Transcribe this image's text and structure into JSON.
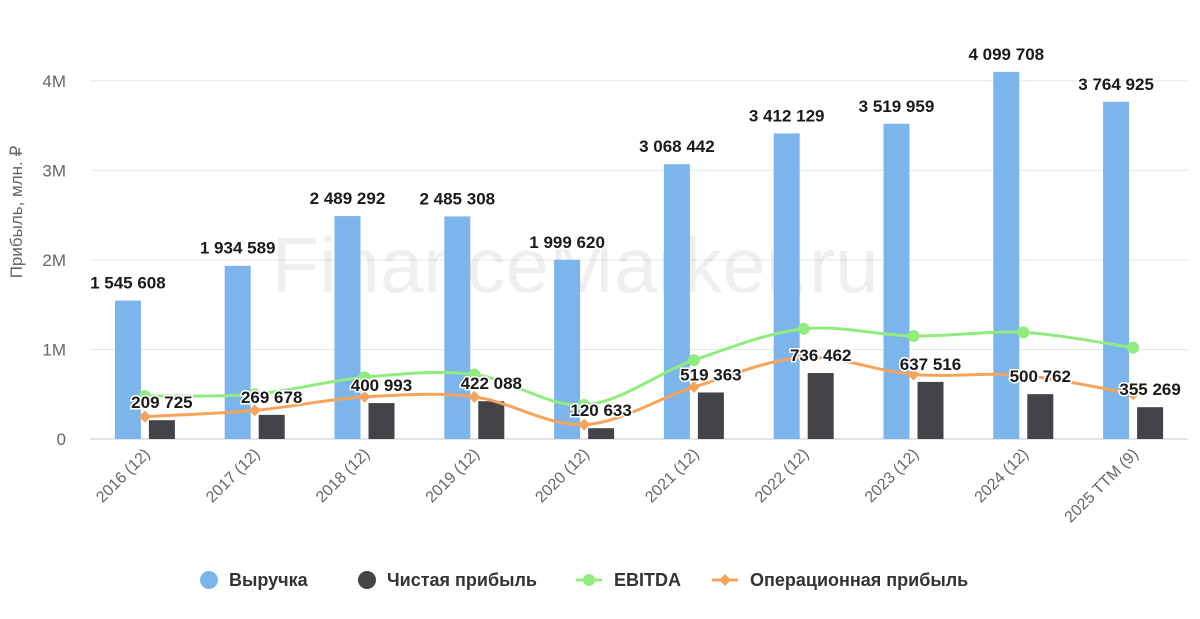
{
  "chart_data": {
    "type": "bar",
    "title": "",
    "ylabel": "Прибыль, млн. ₽",
    "xlabel": "",
    "ylim": [
      0,
      4500000
    ],
    "yticks": [
      {
        "value": 0,
        "label": "0"
      },
      {
        "value": 1000000,
        "label": "1M"
      },
      {
        "value": 2000000,
        "label": "2M"
      },
      {
        "value": 3000000,
        "label": "3M"
      },
      {
        "value": 4000000,
        "label": "4M"
      }
    ],
    "categories": [
      "2016 (12)",
      "2017 (12)",
      "2018 (12)",
      "2019 (12)",
      "2020 (12)",
      "2021 (12)",
      "2022 (12)",
      "2023 (12)",
      "2024 (12)",
      "2025 TTM (9)"
    ],
    "series": [
      {
        "name": "Выручка",
        "kind": "bar",
        "color": "#7cb5ec",
        "values": [
          1545608,
          1934589,
          2489292,
          2485308,
          1999620,
          3068442,
          3412129,
          3519959,
          4099708,
          3764925
        ],
        "labels": [
          "1 545 608",
          "1 934 589",
          "2 489 292",
          "2 485 308",
          "1 999 620",
          "3 068 442",
          "3 412 129",
          "3 519 959",
          "4 099 708",
          "3 764 925"
        ]
      },
      {
        "name": "Чистая прибыль",
        "kind": "bar",
        "color": "#434348",
        "values": [
          209725,
          269678,
          400993,
          422088,
          120633,
          519363,
          736462,
          637516,
          500762,
          355269
        ],
        "labels": [
          "209 725",
          "269 678",
          "400 993",
          "422 088",
          "120 633",
          "519 363",
          "736 462",
          "637 516",
          "500 762",
          "355 269"
        ]
      },
      {
        "name": "EBITDA",
        "kind": "line",
        "color": "#90ed7d",
        "values": [
          480000,
          500000,
          690000,
          720000,
          380000,
          880000,
          1230000,
          1150000,
          1190000,
          1020000
        ]
      },
      {
        "name": "Операционная прибыль",
        "kind": "line",
        "color": "#f7a35c",
        "values": [
          250000,
          320000,
          470000,
          470000,
          160000,
          580000,
          910000,
          720000,
          710000,
          500000
        ]
      }
    ],
    "legend_position": "bottom-center",
    "watermark": "FinanceMarker.ru"
  }
}
